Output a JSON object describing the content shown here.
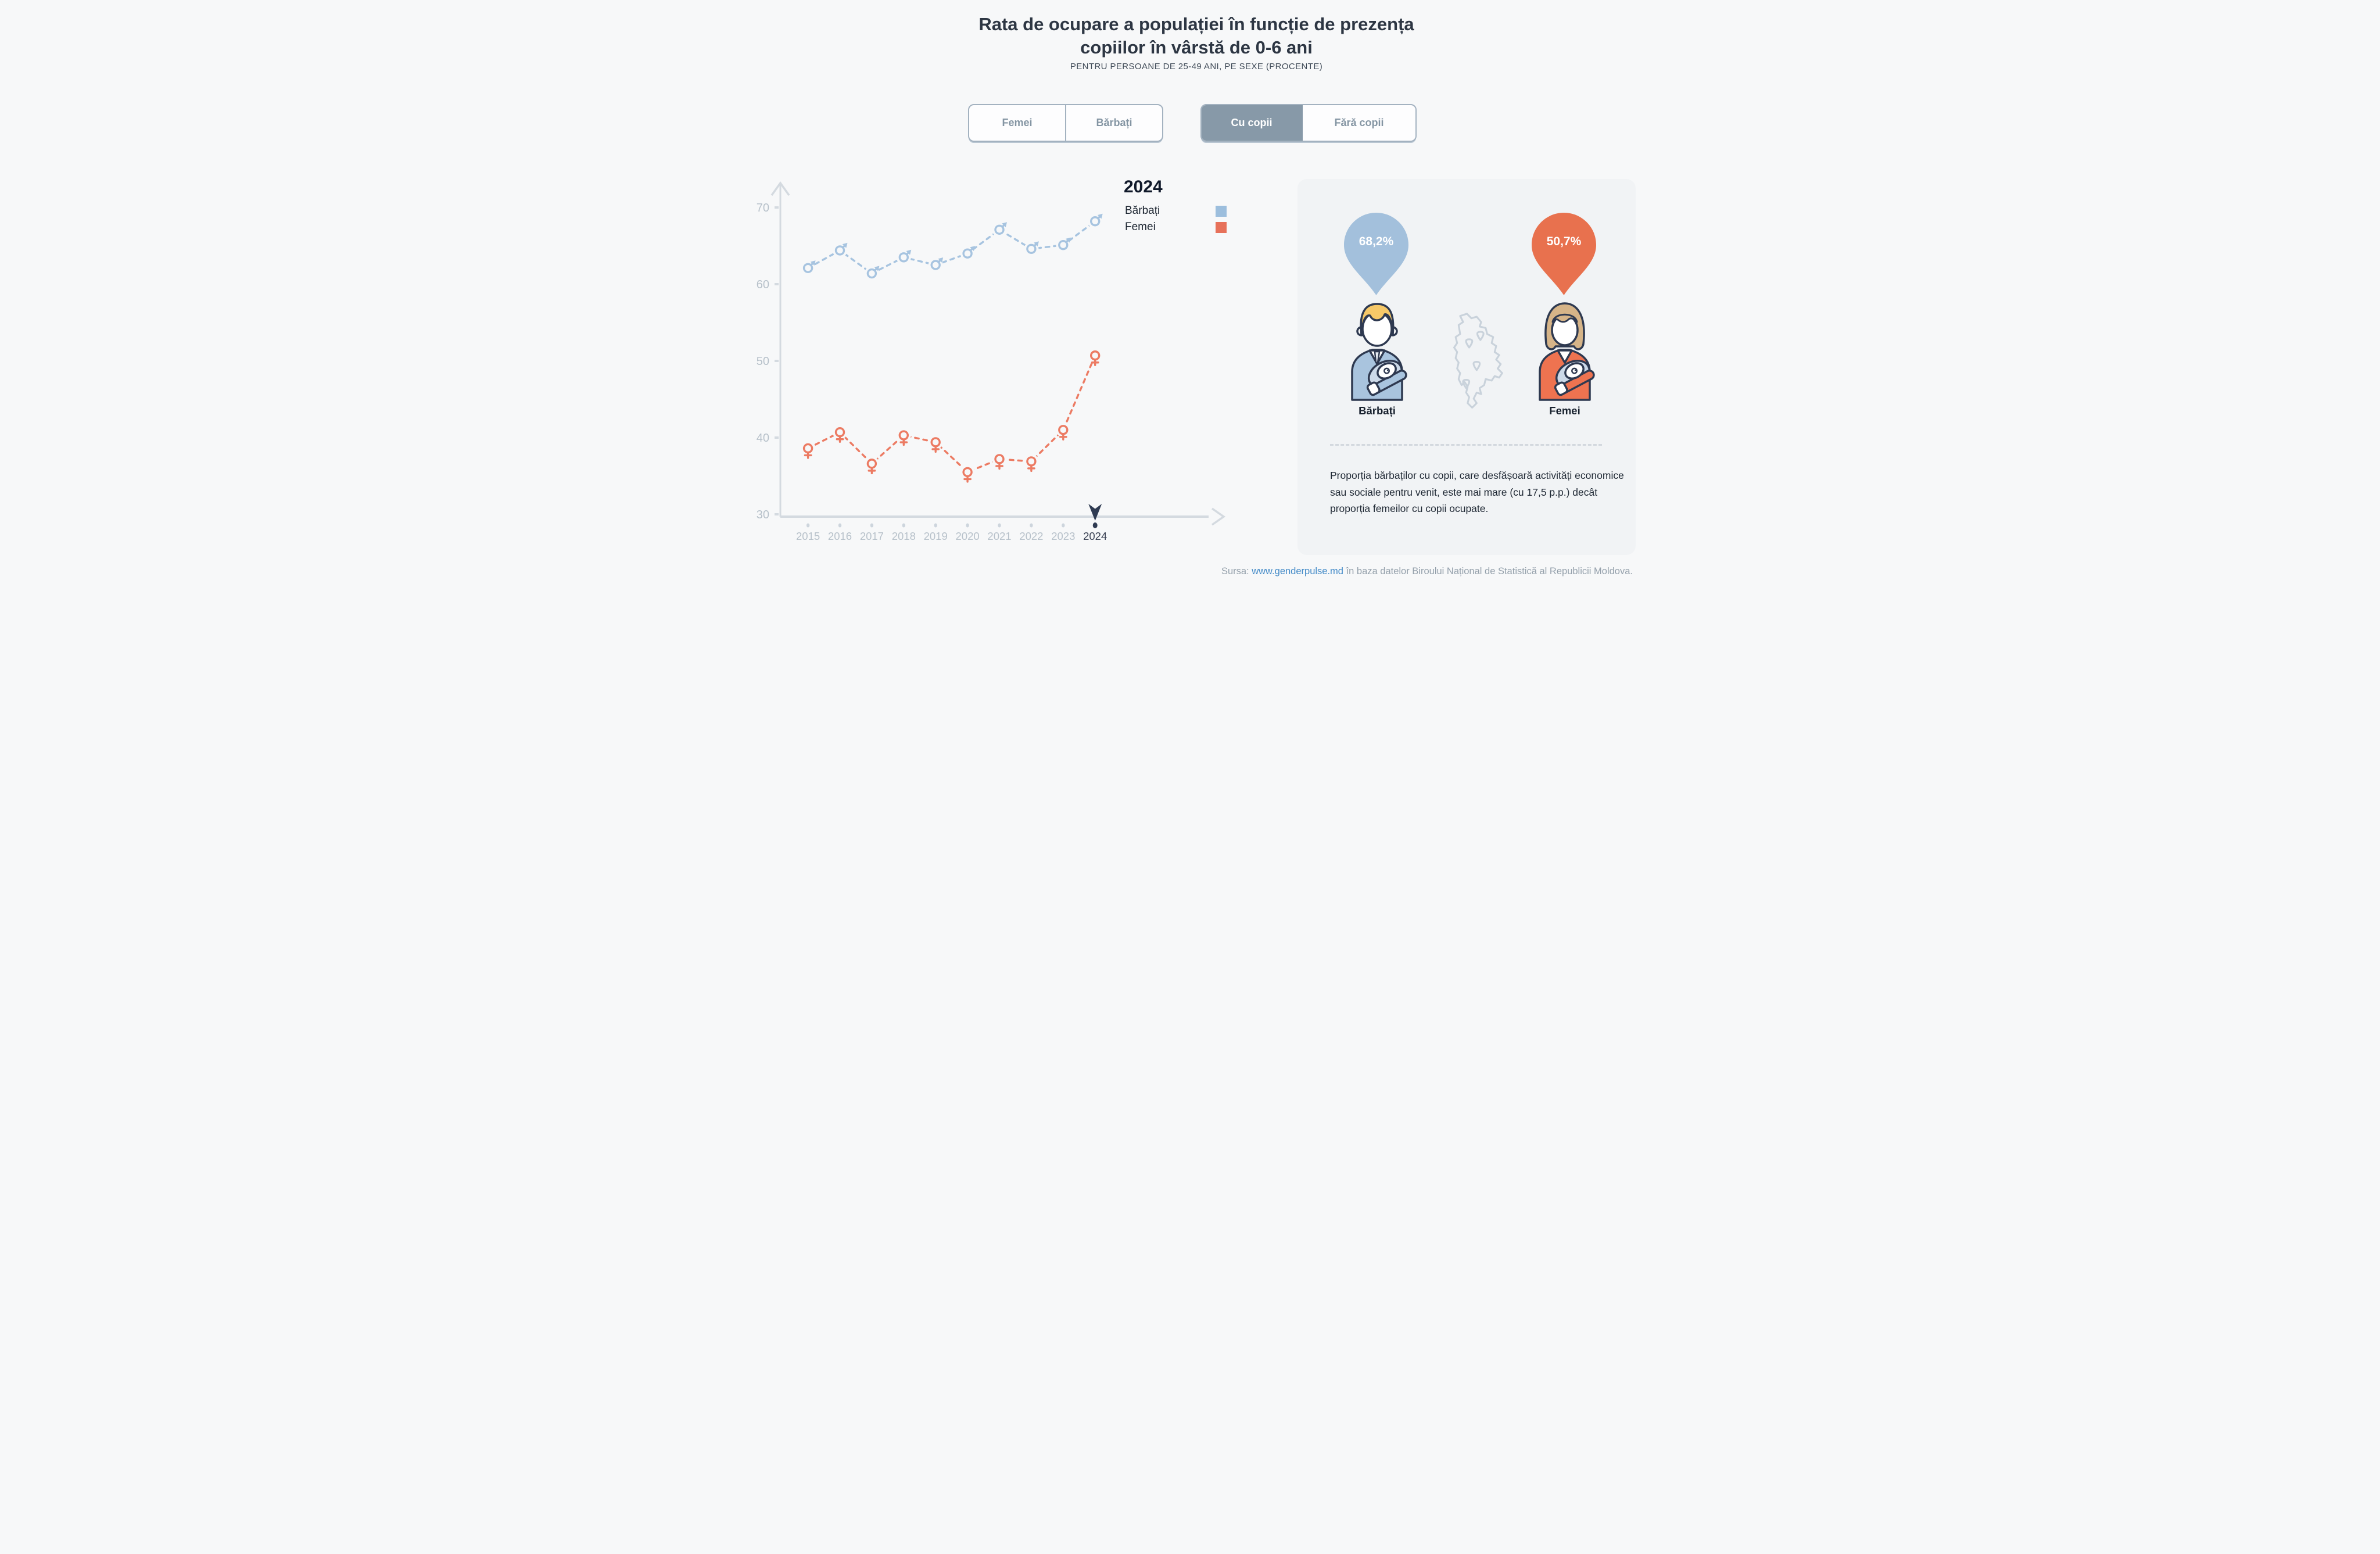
{
  "title": "Rata de ocupare a populației în funcție de prezența copiilor în vârstă de 0-6 ani",
  "subtitle": "PENTRU PERSOANE DE 25-49 ANI, PE SEXE (PROCENTE)",
  "toggles": {
    "sex": {
      "options": [
        {
          "label": "Femei",
          "selected": false
        },
        {
          "label": "Bărbați",
          "selected": false
        }
      ]
    },
    "children": {
      "options": [
        {
          "label": "Cu copii",
          "selected": true
        },
        {
          "label": "Fără copii",
          "selected": false
        }
      ]
    }
  },
  "legend": {
    "year": "2024",
    "items": [
      {
        "label": "Bărbați",
        "color": "#9cbedd"
      },
      {
        "label": "Femei",
        "color": "#e7715a"
      }
    ]
  },
  "chart_data": {
    "type": "line",
    "title": "Rata de ocupare a populației în funcție de prezența copiilor în vârstă de 0-6 ani",
    "xlabel": "",
    "ylabel": "",
    "x": [
      "2015",
      "2016",
      "2017",
      "2018",
      "2019",
      "2020",
      "2021",
      "2022",
      "2023",
      "2024"
    ],
    "series": [
      {
        "name": "Bărbați",
        "marker": "male",
        "color": "#a7c4e0",
        "values": [
          62.1,
          64.4,
          61.4,
          63.5,
          62.5,
          64.0,
          67.1,
          64.6,
          65.1,
          68.2
        ]
      },
      {
        "name": "Femei",
        "marker": "female",
        "color": "#ec7b63",
        "values": [
          38.6,
          40.7,
          36.6,
          40.3,
          39.4,
          35.5,
          37.2,
          36.9,
          41.0,
          50.7
        ]
      }
    ],
    "ylim": [
      30,
      70
    ],
    "yticks": [
      30,
      40,
      50,
      60,
      70
    ],
    "selected_year": "2024",
    "line_style": "dashed",
    "grid": false,
    "legend_position": "right-of-chart-top"
  },
  "panel": {
    "male": {
      "value": "68,2%",
      "label": "Bărbați",
      "pin_color": "#a3c0dc"
    },
    "female": {
      "value": "50,7%",
      "label": "Femei",
      "pin_color": "#e8714e"
    },
    "summary": "Proporția bărbaților cu copii, care desfășoară activități economice sau sociale pentru venit, este mai mare (cu 17,5 p.p.) decât proporția femeilor cu copii ocupate."
  },
  "footer": {
    "prefix": "Sursa: ",
    "link": "www.genderpulse.md",
    "suffix": " în baza datelor Biroului Național de Statistică al Republicii Moldova."
  },
  "colors": {
    "background": "#f7f8f9",
    "panel": "#f1f3f5",
    "axis": "#d4dae0",
    "tick_label": "#b7c1ca",
    "tick_label_active": "#3a4254",
    "year_dot": "#cdd5dd",
    "pointer": "#2f3b52",
    "male_series": "#a7c4e0",
    "female_series": "#ec7b63",
    "button_selected_bg": "#8799a8",
    "link": "#4189c7"
  }
}
